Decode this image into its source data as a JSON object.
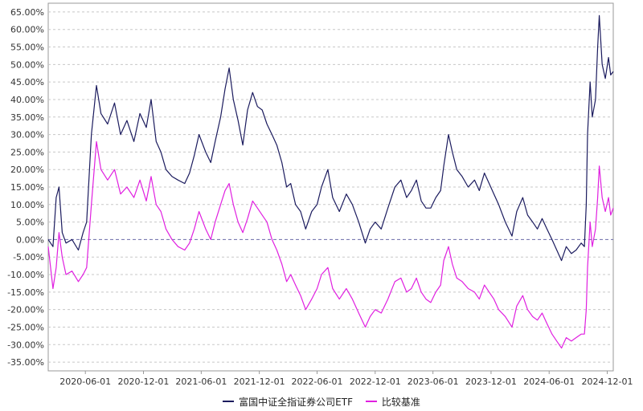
{
  "chart_data": {
    "type": "line",
    "title": "",
    "xlabel": "",
    "ylabel": "",
    "ylim": [
      -37.5,
      67.5
    ],
    "y_ticks": [
      "65.00%",
      "60.00%",
      "55.00%",
      "50.00%",
      "45.00%",
      "40.00%",
      "35.00%",
      "30.00%",
      "25.00%",
      "20.00%",
      "15.00%",
      "10.00%",
      "5.00%",
      "0.00%",
      "-5.00%",
      "-10.00%",
      "-15.00%",
      "-20.00%",
      "-25.00%",
      "-30.00%",
      "-35.00%"
    ],
    "x_ticks": [
      "2020-06-01",
      "2020-12-01",
      "2021-06-01",
      "2021-12-01",
      "2022-06-01",
      "2022-12-01",
      "2023-06-01",
      "2023-12-01",
      "2024-06-01",
      "2024-12-01"
    ],
    "x_range": [
      "2020-02-05",
      "2024-12-20"
    ],
    "grid": true,
    "grid_style": "dashed horizontal",
    "zero_line": "dashed",
    "legend_position": "bottom",
    "series": [
      {
        "name": "富国中证全指证券公司ETF",
        "color": "#1b1b5e",
        "points": [
          [
            "2020-02-05",
            0
          ],
          [
            "2020-02-20",
            -2
          ],
          [
            "2020-03-01",
            12
          ],
          [
            "2020-03-10",
            15
          ],
          [
            "2020-03-20",
            2
          ],
          [
            "2020-04-01",
            -1
          ],
          [
            "2020-04-20",
            0
          ],
          [
            "2020-05-10",
            -3
          ],
          [
            "2020-05-25",
            2
          ],
          [
            "2020-06-05",
            5
          ],
          [
            "2020-06-20",
            30
          ],
          [
            "2020-07-06",
            44
          ],
          [
            "2020-07-20",
            36
          ],
          [
            "2020-08-10",
            33
          ],
          [
            "2020-09-01",
            39
          ],
          [
            "2020-09-20",
            30
          ],
          [
            "2020-10-10",
            34
          ],
          [
            "2020-11-01",
            28
          ],
          [
            "2020-11-20",
            36
          ],
          [
            "2020-12-10",
            32
          ],
          [
            "2020-12-25",
            40
          ],
          [
            "2021-01-10",
            28
          ],
          [
            "2021-01-25",
            25
          ],
          [
            "2021-02-10",
            20
          ],
          [
            "2021-03-01",
            18
          ],
          [
            "2021-03-20",
            17
          ],
          [
            "2021-04-10",
            16
          ],
          [
            "2021-04-25",
            19
          ],
          [
            "2021-05-10",
            24
          ],
          [
            "2021-05-25",
            30
          ],
          [
            "2021-06-15",
            25
          ],
          [
            "2021-07-01",
            22
          ],
          [
            "2021-07-15",
            28
          ],
          [
            "2021-08-01",
            35
          ],
          [
            "2021-08-15",
            43
          ],
          [
            "2021-08-28",
            49
          ],
          [
            "2021-09-10",
            40
          ],
          [
            "2021-09-25",
            34
          ],
          [
            "2021-10-10",
            27
          ],
          [
            "2021-10-25",
            37
          ],
          [
            "2021-11-10",
            42
          ],
          [
            "2021-11-25",
            38
          ],
          [
            "2021-12-10",
            37
          ],
          [
            "2021-12-25",
            33
          ],
          [
            "2022-01-10",
            30
          ],
          [
            "2022-01-25",
            27
          ],
          [
            "2022-02-10",
            22
          ],
          [
            "2022-02-25",
            15
          ],
          [
            "2022-03-10",
            16
          ],
          [
            "2022-03-25",
            10
          ],
          [
            "2022-04-10",
            8
          ],
          [
            "2022-04-26",
            3
          ],
          [
            "2022-05-15",
            8
          ],
          [
            "2022-06-01",
            10
          ],
          [
            "2022-06-15",
            15
          ],
          [
            "2022-07-05",
            20
          ],
          [
            "2022-07-20",
            12
          ],
          [
            "2022-08-10",
            8
          ],
          [
            "2022-09-01",
            13
          ],
          [
            "2022-09-20",
            10
          ],
          [
            "2022-10-10",
            5
          ],
          [
            "2022-10-31",
            -1
          ],
          [
            "2022-11-15",
            3
          ],
          [
            "2022-12-01",
            5
          ],
          [
            "2022-12-20",
            3
          ],
          [
            "2023-01-10",
            9
          ],
          [
            "2023-02-01",
            15
          ],
          [
            "2023-02-20",
            17
          ],
          [
            "2023-03-10",
            12
          ],
          [
            "2023-03-25",
            14
          ],
          [
            "2023-04-10",
            17
          ],
          [
            "2023-04-25",
            11
          ],
          [
            "2023-05-10",
            9
          ],
          [
            "2023-05-25",
            9
          ],
          [
            "2023-06-10",
            12
          ],
          [
            "2023-06-25",
            14
          ],
          [
            "2023-07-05",
            21
          ],
          [
            "2023-07-20",
            30
          ],
          [
            "2023-08-01",
            25
          ],
          [
            "2023-08-15",
            20
          ],
          [
            "2023-09-01",
            18
          ],
          [
            "2023-09-20",
            15
          ],
          [
            "2023-10-10",
            17
          ],
          [
            "2023-10-25",
            14
          ],
          [
            "2023-11-10",
            19
          ],
          [
            "2023-11-25",
            16
          ],
          [
            "2023-12-10",
            13
          ],
          [
            "2023-12-25",
            10
          ],
          [
            "2024-01-15",
            5
          ],
          [
            "2024-02-05",
            1
          ],
          [
            "2024-02-20",
            8
          ],
          [
            "2024-03-10",
            12
          ],
          [
            "2024-03-25",
            7
          ],
          [
            "2024-04-10",
            5
          ],
          [
            "2024-04-25",
            3
          ],
          [
            "2024-05-10",
            6
          ],
          [
            "2024-05-25",
            3
          ],
          [
            "2024-06-10",
            0
          ],
          [
            "2024-06-25",
            -3
          ],
          [
            "2024-07-10",
            -6
          ],
          [
            "2024-07-25",
            -2
          ],
          [
            "2024-08-10",
            -4
          ],
          [
            "2024-08-25",
            -3
          ],
          [
            "2024-09-10",
            -1
          ],
          [
            "2024-09-20",
            -2
          ],
          [
            "2024-09-26",
            10
          ],
          [
            "2024-09-30",
            30
          ],
          [
            "2024-10-08",
            45
          ],
          [
            "2024-10-15",
            35
          ],
          [
            "2024-10-25",
            40
          ],
          [
            "2024-11-01",
            55
          ],
          [
            "2024-11-06",
            64
          ],
          [
            "2024-11-15",
            50
          ],
          [
            "2024-11-25",
            46
          ],
          [
            "2024-12-05",
            52
          ],
          [
            "2024-12-12",
            47
          ],
          [
            "2024-12-20",
            48
          ]
        ]
      },
      {
        "name": "比较基准",
        "color": "#e020e0",
        "points": [
          [
            "2020-02-05",
            -2
          ],
          [
            "2020-02-20",
            -14
          ],
          [
            "2020-03-01",
            -8
          ],
          [
            "2020-03-10",
            2
          ],
          [
            "2020-03-20",
            -5
          ],
          [
            "2020-04-01",
            -10
          ],
          [
            "2020-04-20",
            -9
          ],
          [
            "2020-05-10",
            -12
          ],
          [
            "2020-05-25",
            -10
          ],
          [
            "2020-06-05",
            -8
          ],
          [
            "2020-06-20",
            10
          ],
          [
            "2020-07-06",
            28
          ],
          [
            "2020-07-20",
            20
          ],
          [
            "2020-08-10",
            17
          ],
          [
            "2020-09-01",
            20
          ],
          [
            "2020-09-20",
            13
          ],
          [
            "2020-10-10",
            15
          ],
          [
            "2020-11-01",
            12
          ],
          [
            "2020-11-20",
            17
          ],
          [
            "2020-12-10",
            11
          ],
          [
            "2020-12-25",
            18
          ],
          [
            "2021-01-10",
            10
          ],
          [
            "2021-01-25",
            8
          ],
          [
            "2021-02-10",
            3
          ],
          [
            "2021-03-01",
            0
          ],
          [
            "2021-03-20",
            -2
          ],
          [
            "2021-04-10",
            -3
          ],
          [
            "2021-04-25",
            -1
          ],
          [
            "2021-05-10",
            3
          ],
          [
            "2021-05-25",
            8
          ],
          [
            "2021-06-15",
            3
          ],
          [
            "2021-07-01",
            0
          ],
          [
            "2021-07-15",
            5
          ],
          [
            "2021-08-01",
            10
          ],
          [
            "2021-08-15",
            14
          ],
          [
            "2021-08-28",
            16
          ],
          [
            "2021-09-10",
            10
          ],
          [
            "2021-09-25",
            5
          ],
          [
            "2021-10-10",
            2
          ],
          [
            "2021-10-25",
            6
          ],
          [
            "2021-11-10",
            11
          ],
          [
            "2021-11-25",
            9
          ],
          [
            "2021-12-10",
            7
          ],
          [
            "2021-12-25",
            5
          ],
          [
            "2022-01-10",
            0
          ],
          [
            "2022-01-25",
            -3
          ],
          [
            "2022-02-10",
            -7
          ],
          [
            "2022-02-25",
            -12
          ],
          [
            "2022-03-10",
            -10
          ],
          [
            "2022-03-25",
            -13
          ],
          [
            "2022-04-10",
            -16
          ],
          [
            "2022-04-26",
            -20
          ],
          [
            "2022-05-15",
            -17
          ],
          [
            "2022-06-01",
            -14
          ],
          [
            "2022-06-15",
            -10
          ],
          [
            "2022-07-05",
            -8
          ],
          [
            "2022-07-20",
            -14
          ],
          [
            "2022-08-10",
            -17
          ],
          [
            "2022-09-01",
            -14
          ],
          [
            "2022-09-20",
            -17
          ],
          [
            "2022-10-10",
            -21
          ],
          [
            "2022-10-31",
            -25
          ],
          [
            "2022-11-15",
            -22
          ],
          [
            "2022-12-01",
            -20
          ],
          [
            "2022-12-20",
            -21
          ],
          [
            "2023-01-10",
            -17
          ],
          [
            "2023-02-01",
            -12
          ],
          [
            "2023-02-20",
            -11
          ],
          [
            "2023-03-10",
            -15
          ],
          [
            "2023-03-25",
            -14
          ],
          [
            "2023-04-10",
            -11
          ],
          [
            "2023-04-25",
            -15
          ],
          [
            "2023-05-10",
            -17
          ],
          [
            "2023-05-25",
            -18
          ],
          [
            "2023-06-10",
            -15
          ],
          [
            "2023-06-25",
            -13
          ],
          [
            "2023-07-05",
            -6
          ],
          [
            "2023-07-20",
            -2
          ],
          [
            "2023-08-01",
            -7
          ],
          [
            "2023-08-15",
            -11
          ],
          [
            "2023-09-01",
            -12
          ],
          [
            "2023-09-20",
            -14
          ],
          [
            "2023-10-10",
            -15
          ],
          [
            "2023-10-25",
            -17
          ],
          [
            "2023-11-10",
            -13
          ],
          [
            "2023-11-25",
            -15
          ],
          [
            "2023-12-10",
            -17
          ],
          [
            "2023-12-25",
            -20
          ],
          [
            "2024-01-15",
            -22
          ],
          [
            "2024-02-05",
            -25
          ],
          [
            "2024-02-20",
            -19
          ],
          [
            "2024-03-10",
            -16
          ],
          [
            "2024-03-25",
            -20
          ],
          [
            "2024-04-10",
            -22
          ],
          [
            "2024-04-25",
            -23
          ],
          [
            "2024-05-10",
            -21
          ],
          [
            "2024-05-25",
            -24
          ],
          [
            "2024-06-10",
            -27
          ],
          [
            "2024-06-25",
            -29
          ],
          [
            "2024-07-10",
            -31
          ],
          [
            "2024-07-25",
            -28
          ],
          [
            "2024-08-10",
            -29
          ],
          [
            "2024-08-25",
            -28
          ],
          [
            "2024-09-10",
            -27
          ],
          [
            "2024-09-20",
            -27
          ],
          [
            "2024-09-26",
            -20
          ],
          [
            "2024-09-30",
            -8
          ],
          [
            "2024-10-08",
            5
          ],
          [
            "2024-10-15",
            -2
          ],
          [
            "2024-10-25",
            3
          ],
          [
            "2024-11-01",
            12
          ],
          [
            "2024-11-06",
            21
          ],
          [
            "2024-11-15",
            12
          ],
          [
            "2024-11-25",
            8
          ],
          [
            "2024-12-05",
            12
          ],
          [
            "2024-12-12",
            7
          ],
          [
            "2024-12-20",
            9
          ]
        ]
      }
    ]
  }
}
